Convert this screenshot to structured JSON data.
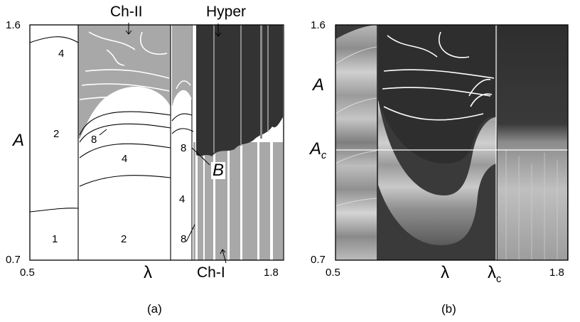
{
  "chart_data": [
    {
      "type": "heatmap",
      "panel_label": "(a)",
      "xlabel": "λ",
      "ylabel": "A",
      "xlim": [
        0.5,
        1.8
      ],
      "ylim": [
        0.7,
        1.6
      ],
      "x_ticks": [
        "0.5",
        "1.8"
      ],
      "y_ticks": [
        "1.6",
        "0.7"
      ],
      "regions": [
        {
          "label": "1",
          "lambda": 0.62,
          "A": 0.8
        },
        {
          "label": "2",
          "lambda": 0.62,
          "A": 1.3
        },
        {
          "label": "4",
          "lambda": 0.65,
          "A": 1.58
        },
        {
          "label": "2",
          "lambda": 1.05,
          "A": 0.8
        },
        {
          "label": "4",
          "lambda": 1.05,
          "A": 1.14
        },
        {
          "label": "8",
          "lambda": 0.95,
          "A": 1.29
        },
        {
          "label": "4",
          "lambda": 1.41,
          "A": 0.92
        },
        {
          "label": "8",
          "lambda": 1.41,
          "A": 1.17
        },
        {
          "label": "8",
          "lambda": 1.41,
          "A": 0.77
        }
      ],
      "boundaries_x": [
        0.87,
        1.28,
        1.37,
        1.4
      ],
      "annotations": [
        {
          "text": "Ch-II",
          "lambda": 1.07,
          "A": 1.6
        },
        {
          "text": "Hyper",
          "lambda": 1.57,
          "A": 1.6
        },
        {
          "text": "Ch-I",
          "lambda": 1.58,
          "A": 0.7
        },
        {
          "text": "B",
          "lambda": 1.48,
          "A": 1.11
        }
      ]
    },
    {
      "type": "heatmap",
      "panel_label": "(b)",
      "xlabel": "λ",
      "ylabel": "A",
      "xlim": [
        0.5,
        1.8
      ],
      "ylim": [
        0.7,
        1.6
      ],
      "x_ticks": [
        "0.5",
        "1.8"
      ],
      "y_ticks": [
        "1.6",
        "0.7"
      ],
      "marked_values": {
        "lambda_c": 1.395,
        "A_c": 1.15
      },
      "marked_labels": {
        "lambda_c": "λc",
        "A_c": "Ac"
      }
    }
  ],
  "text": {
    "a_y_top": "1.6",
    "a_y_bot": "0.7",
    "a_x_left": "0.5",
    "a_x_right": "1.8",
    "a_ylabel": "A",
    "a_xlabel": "λ",
    "a_r1": "4",
    "a_r2": "2",
    "a_r3": "8",
    "a_r4": "4",
    "a_r5": "1",
    "a_r6": "2",
    "a_r7": "8",
    "a_r8": "4",
    "a_r9": "8",
    "a_ch2": "Ch-II",
    "a_hyper": "Hyper",
    "a_ch1": "Ch-I",
    "a_B": "B",
    "a_caption": "(a)",
    "b_y_top": "1.6",
    "b_y_bot": "0.7",
    "b_x_left": "0.5",
    "b_x_right": "1.8",
    "b_ylabel": "A",
    "b_xlabel": "λ",
    "b_Ac_main": "A",
    "b_Ac_sub": "c",
    "b_lc_main": "λ",
    "b_lc_sub": "c",
    "b_caption": "(b)"
  },
  "colors": {
    "chaos_gray": "#a8a8a8",
    "hyper_dark": "#333333",
    "panel_b_dark": "#3a3a3a",
    "line": "#000000"
  }
}
